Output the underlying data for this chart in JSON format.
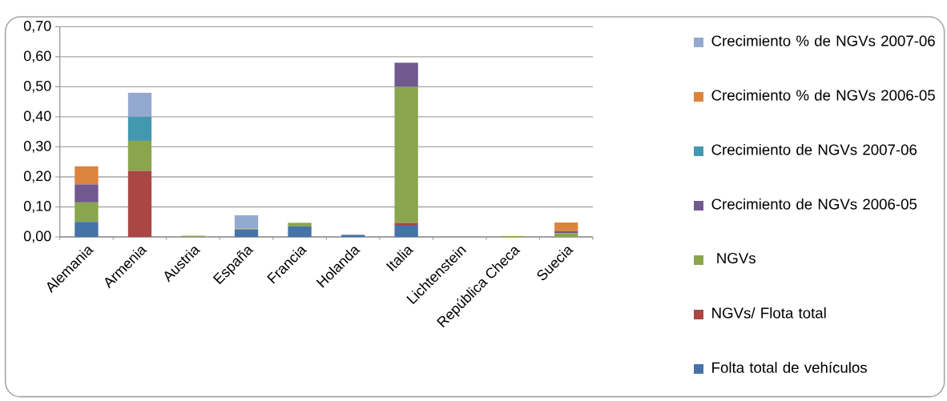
{
  "chart_data": {
    "type": "bar",
    "stacked": true,
    "categories": [
      "Alemania",
      "Armenia",
      "Austria",
      "España",
      "Francia",
      "Holanda",
      "Italia",
      "Lichtenstein",
      "República Checa",
      "Suecia"
    ],
    "series": [
      {
        "name": "Folta total de vehículos",
        "color": "#4572a7",
        "values": [
          0.05,
          0,
          0,
          0.025,
          0.035,
          0.007,
          0.04,
          0,
          0,
          0
        ]
      },
      {
        "name": "NGVs/ Flota total",
        "color": "#aa4643",
        "values": [
          0,
          0.22,
          0,
          0,
          0,
          0,
          0.007,
          0,
          0,
          0
        ]
      },
      {
        "name": " NGVs",
        "color": "#89a54e",
        "values": [
          0.065,
          0.1,
          0.004,
          0.003,
          0.012,
          null,
          0.453,
          0,
          0.003,
          0.012
        ]
      },
      {
        "name": "Crecimiento de NGVs 2006-05",
        "color": "#71588f",
        "values": [
          0.06,
          0,
          0,
          0,
          0,
          0,
          0.08,
          0,
          0,
          0.007
        ]
      },
      {
        "name": "Crecimiento de NGVs 2007-06",
        "color": "#4198af",
        "values": [
          0,
          0.08,
          0,
          0,
          0,
          0,
          0,
          0,
          0,
          0
        ]
      },
      {
        "name": "Crecimiento % de NGVs 2006-05",
        "color": "#db843d",
        "values": [
          0.06,
          0,
          0,
          0,
          0,
          0,
          0,
          0,
          0,
          0.029
        ]
      },
      {
        "name": "Crecimiento % de NGVs 2007-06",
        "color": "#93a9cf",
        "values": [
          0,
          0.08,
          0,
          0.044,
          0,
          0,
          0,
          0,
          0,
          0
        ]
      }
    ],
    "ylim": [
      0,
      0.7
    ],
    "yticks": [
      {
        "value": 0,
        "label": "0,00"
      },
      {
        "value": 0.1,
        "label": "0,10"
      },
      {
        "value": 0.2,
        "label": "0,20"
      },
      {
        "value": 0.3,
        "label": "0,30"
      },
      {
        "value": 0.4,
        "label": "0,40"
      },
      {
        "value": 0.5,
        "label": "0,50"
      },
      {
        "value": 0.6,
        "label": "0,60"
      },
      {
        "value": 0.7,
        "label": "0,70"
      }
    ],
    "grid": "y",
    "legend": "right"
  }
}
